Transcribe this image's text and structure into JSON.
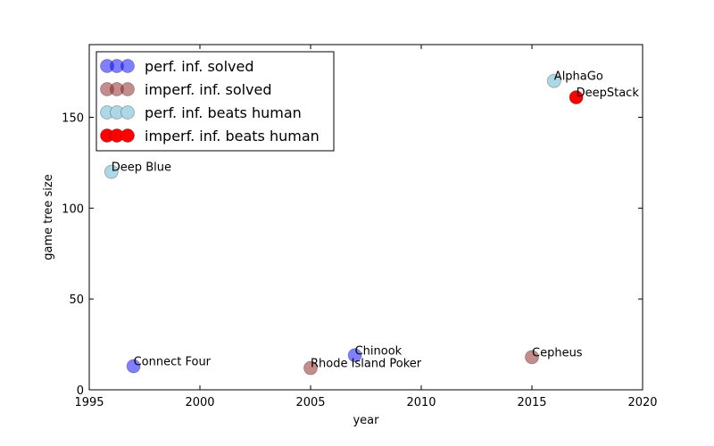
{
  "chart_data": {
    "type": "scatter",
    "xlabel": "year",
    "ylabel": "game tree size",
    "xlim": [
      1995,
      2020
    ],
    "ylim": [
      0,
      190
    ],
    "xticks": [
      1995,
      2000,
      2005,
      2010,
      2015,
      2020
    ],
    "yticks": [
      0,
      50,
      100,
      150
    ],
    "legend_position": "top-left",
    "series": [
      {
        "name": "perf. inf. solved",
        "color": "#0000ff",
        "opacity": 0.5,
        "points": [
          {
            "x": 1997,
            "y": 13,
            "label": "Connect Four"
          },
          {
            "x": 2007,
            "y": 19,
            "label": "Chinook"
          }
        ]
      },
      {
        "name": "imperf. inf. solved",
        "color": "#8b1a1a",
        "opacity": 0.5,
        "points": [
          {
            "x": 2005,
            "y": 12,
            "label": "Rhode Island Poker"
          },
          {
            "x": 2015,
            "y": 18,
            "label": "Cepheus"
          }
        ]
      },
      {
        "name": "perf. inf. beats human",
        "color": "#add8e6",
        "opacity": 1,
        "points": [
          {
            "x": 1996,
            "y": 120,
            "label": "Deep Blue"
          },
          {
            "x": 2016,
            "y": 170,
            "label": "AlphaGo"
          }
        ]
      },
      {
        "name": "imperf. inf. beats human",
        "color": "#ff0000",
        "opacity": 1,
        "points": [
          {
            "x": 2017,
            "y": 161,
            "label": "DeepStack"
          }
        ]
      }
    ]
  }
}
